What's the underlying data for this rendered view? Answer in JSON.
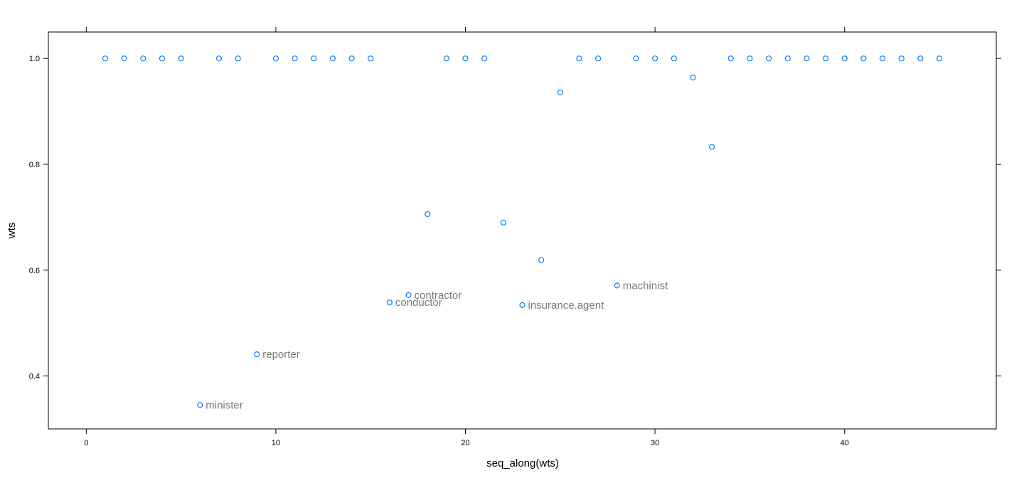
{
  "chart_data": {
    "type": "scatter",
    "xlabel": "seq_along(wts)",
    "ylabel": "wts",
    "xlim": [
      -2,
      48
    ],
    "ylim": [
      0.3,
      1.05
    ],
    "x_ticks": [
      0,
      10,
      20,
      30,
      40
    ],
    "y_ticks": [
      0.4,
      0.6,
      0.8,
      1.0
    ],
    "x_tick_labels": [
      "0",
      "10",
      "20",
      "30",
      "40"
    ],
    "y_tick_labels": [
      "0.4",
      "0.6",
      "0.8",
      "1.0"
    ],
    "grid": false,
    "point_color": "#0080ff",
    "label_color": "#7a7a7a",
    "points": [
      {
        "x": 1,
        "y": 1.0
      },
      {
        "x": 2,
        "y": 1.0
      },
      {
        "x": 3,
        "y": 1.0
      },
      {
        "x": 4,
        "y": 1.0
      },
      {
        "x": 5,
        "y": 1.0
      },
      {
        "x": 6,
        "y": 0.345,
        "label": "minister"
      },
      {
        "x": 7,
        "y": 1.0
      },
      {
        "x": 8,
        "y": 1.0
      },
      {
        "x": 9,
        "y": 0.441,
        "label": "reporter"
      },
      {
        "x": 10,
        "y": 1.0
      },
      {
        "x": 11,
        "y": 1.0
      },
      {
        "x": 12,
        "y": 1.0
      },
      {
        "x": 13,
        "y": 1.0
      },
      {
        "x": 14,
        "y": 1.0
      },
      {
        "x": 15,
        "y": 1.0
      },
      {
        "x": 16,
        "y": 0.539,
        "label": "conductor"
      },
      {
        "x": 17,
        "y": 0.553,
        "label": "contractor"
      },
      {
        "x": 18,
        "y": 0.706
      },
      {
        "x": 19,
        "y": 1.0
      },
      {
        "x": 20,
        "y": 1.0
      },
      {
        "x": 21,
        "y": 1.0
      },
      {
        "x": 22,
        "y": 0.69
      },
      {
        "x": 23,
        "y": 0.534,
        "label": "insurance.agent"
      },
      {
        "x": 24,
        "y": 0.619
      },
      {
        "x": 25,
        "y": 0.936
      },
      {
        "x": 26,
        "y": 1.0
      },
      {
        "x": 27,
        "y": 1.0
      },
      {
        "x": 28,
        "y": 0.571,
        "label": "machinist"
      },
      {
        "x": 29,
        "y": 1.0
      },
      {
        "x": 30,
        "y": 1.0
      },
      {
        "x": 31,
        "y": 1.0
      },
      {
        "x": 32,
        "y": 0.964
      },
      {
        "x": 33,
        "y": 0.833
      },
      {
        "x": 34,
        "y": 1.0
      },
      {
        "x": 35,
        "y": 1.0
      },
      {
        "x": 36,
        "y": 1.0
      },
      {
        "x": 37,
        "y": 1.0
      },
      {
        "x": 38,
        "y": 1.0
      },
      {
        "x": 39,
        "y": 1.0
      },
      {
        "x": 40,
        "y": 1.0
      },
      {
        "x": 41,
        "y": 1.0
      },
      {
        "x": 42,
        "y": 1.0
      },
      {
        "x": 43,
        "y": 1.0
      },
      {
        "x": 44,
        "y": 1.0
      },
      {
        "x": 45,
        "y": 1.0
      }
    ]
  }
}
